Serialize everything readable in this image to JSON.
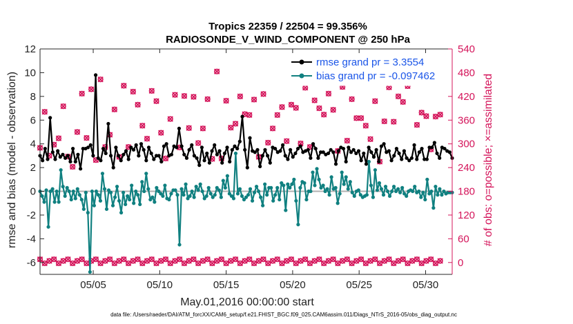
{
  "chart_data": {
    "type": "line",
    "title_line1": "Tropics 22359 / 22504 = 99.356%",
    "title_line2": "RADIOSONDE_V_WIND_COMPONENT @ 250 hPa",
    "xlabel": "May.01,2016 00:00:00 start",
    "ylabel_left": "rmse and bias (model - observation)",
    "ylabel_right": "# of obs: o=possible; ×=assimilated",
    "footer": "data file: /Users/raeder/DAI/ATM_forcXX/CAM6_setup/f.e21.FHIST_BGC.f09_025.CAM6assim.011/Diags_NTrS_2016-05/obs_diag_output.nc",
    "xlim": [
      1,
      32
    ],
    "ylim_left": [
      -7,
      12
    ],
    "ylim_right": [
      -30,
      540
    ],
    "x_ticks": [
      5,
      10,
      15,
      20,
      25,
      30
    ],
    "x_tick_labels": [
      "05/05",
      "05/10",
      "05/15",
      "05/20",
      "05/25",
      "05/30"
    ],
    "y_left_ticks": [
      -6,
      -4,
      -2,
      0,
      2,
      4,
      6,
      8,
      10,
      12
    ],
    "y_right_ticks": [
      0,
      60,
      120,
      180,
      240,
      300,
      360,
      420,
      480,
      540
    ],
    "colors": {
      "rmse": "#000000",
      "bias": "#108080",
      "obs": "#d4145a",
      "zero_line": "#b0b0b0",
      "right_axis": "#d4145a",
      "legend_text": "#1a55e8"
    },
    "series": [
      {
        "name": "rmse grand pr = 3.3554",
        "color": "#000000",
        "values": [
          3.0,
          2.6,
          3.6,
          2.7,
          6.2,
          3.3,
          2.7,
          3.4,
          2.9,
          3.1,
          2.8,
          3.0,
          2.5,
          3.6,
          2.5,
          3.1,
          1.9,
          3.6,
          3.6,
          3.7,
          3.9,
          3.0,
          9.8,
          2.8,
          2.6,
          3.6,
          3.2,
          5.7,
          3.0,
          2.0,
          3.7,
          3.0,
          2.6,
          3.1,
          3.4,
          2.7,
          3.7,
          3.5,
          3.9,
          3.0,
          4.0,
          3.5,
          2.6,
          3.7,
          3.2,
          2.7,
          3.0,
          3.0,
          2.5,
          3.8,
          4.0,
          3.0,
          3.1,
          3.8,
          3.7,
          5.3,
          3.8,
          3.1,
          2.8,
          3.5,
          3.9,
          3.0,
          2.8,
          2.2,
          3.7,
          2.6,
          3.2,
          2.4,
          3.4,
          3.9,
          3.1,
          3.4,
          2.4,
          3.2,
          3.7,
          2.5,
          3.5,
          3.8,
          3.6,
          4.2,
          6.3,
          3.5,
          2.0,
          4.5,
          3.4,
          3.3,
          3.5,
          2.1,
          3.0,
          3.5,
          3.0,
          2.4,
          3.7,
          3.6,
          3.3,
          3.4,
          3.9,
          3.0,
          2.7,
          3.5,
          2.9,
          3.2,
          3.6,
          3.8,
          3.3,
          3.4,
          3.5,
          2.8,
          4.0,
          3.6,
          2.8,
          3.3,
          3.3,
          3.1,
          3.2,
          3.5,
          3.3,
          2.3,
          3.4,
          3.7,
          3.6,
          2.5,
          3.7,
          3.3,
          3.5,
          3.2,
          3.4,
          2.6,
          3.2,
          2.3,
          3.7,
          3.3,
          2.9,
          3.5,
          2.5,
          3.8,
          4.0,
          3.3,
          3.4,
          2.6,
          3.0,
          3.6,
          3.2,
          2.7,
          3.4,
          2.8,
          2.6,
          2.8,
          3.9,
          2.7,
          3.3,
          3.6,
          2.7,
          2.7,
          3.7,
          3.7,
          4.1,
          3.2,
          2.8,
          3.7,
          3.6,
          3.4,
          3.3,
          2.8
        ]
      },
      {
        "name": "bias grand pr = -0.097462",
        "color": "#108080",
        "values": [
          0.0,
          -0.4,
          -0.9,
          0.1,
          -3.0,
          0.0,
          0.2,
          -0.9,
          0.0,
          -0.9,
          1.8,
          0.4,
          -0.4,
          0.3,
          0.0,
          -0.7,
          0.0,
          -0.6,
          0.2,
          -0.3,
          -0.7,
          -1.5,
          -0.1,
          -1.8,
          -6.8,
          0.0,
          -1.2,
          0.0,
          -0.3,
          -0.8,
          1.5,
          0.2,
          -1.5,
          0.1,
          -0.1,
          -1.2,
          -0.5,
          0.4,
          -0.8,
          -1.8,
          -0.1,
          -1.1,
          -0.4,
          -0.7,
          0.5,
          -1.0,
          0.0,
          -0.3,
          -1.1,
          0.8,
          0.0,
          1.5,
          0.2,
          -0.7,
          -0.5,
          -0.9,
          0.3,
          0.0,
          -0.2,
          -0.4,
          0.5,
          -0.6,
          -0.7,
          -0.2,
          0.1,
          0.1,
          -0.3,
          -4.5,
          0.2,
          -0.3,
          0.6,
          -0.6,
          -0.4,
          0.0,
          -0.5,
          0.4,
          0.1,
          0.6,
          0.0,
          -0.6,
          -0.4,
          0.3,
          -0.2,
          -0.5,
          -0.3,
          0.3,
          0.1,
          -0.5,
          0.9,
          0.3,
          1.3,
          -0.2,
          -0.4,
          -0.6,
          3.2,
          -0.2,
          0.2,
          -0.4,
          -0.7,
          -0.5,
          -0.3,
          0.2,
          -0.8,
          -0.1,
          0.4,
          0.0,
          -0.5,
          -1.2,
          0.6,
          -0.3,
          0.3,
          0.3,
          -0.8,
          -0.3,
          0.3,
          -0.7,
          0.7,
          0.5,
          -1.6,
          0.6,
          0.3,
          0.6,
          1.0,
          -0.8,
          -2.8,
          0.3,
          0.8,
          0.7,
          -0.7,
          0.0,
          0.0,
          1.6,
          0.5,
          1.9,
          1.0,
          0.3,
          0.5,
          0.0,
          0.2,
          -0.3,
          1.2,
          0.2,
          0.3,
          -1.0,
          -0.2,
          1.6,
          0.6,
          1.2,
          0.2,
          0.8,
          -0.1,
          -0.4,
          0.0,
          0.1,
          -0.3,
          -0.5,
          -0.4,
          -0.3,
          2.5,
          0.5,
          -0.5,
          1.8,
          0.1,
          0.7,
          0.2,
          -0.3,
          0.4,
          0.0,
          -0.4,
          0.0,
          0.4,
          0.0,
          0.2,
          -0.1,
          0.3,
          -0.2,
          -0.4,
          0.0,
          0.1,
          0.0,
          0.4,
          -0.1,
          0.0,
          -0.5,
          -0.1,
          -0.7,
          1.0,
          -0.2,
          0.0,
          -1.4,
          0.4,
          -0.3,
          0.2,
          -0.3,
          0.0,
          -0.2,
          -0.1,
          -0.1,
          -0.1
        ]
      }
    ],
    "obs_counts_high": [
      290,
      381,
      270,
      298,
      314,
      395,
      268,
      242,
      330,
      427,
      315,
      438,
      259,
      463,
      292,
      323,
      387,
      267,
      447,
      292,
      432,
      399,
      346,
      313,
      434,
      408,
      328,
      263,
      363,
      424,
      291,
      421,
      340,
      419,
      302,
      339,
      413,
      262,
      483,
      263,
      409,
      341,
      351,
      420,
      375,
      373,
      412,
      267,
      426,
      303,
      339,
      373,
      393,
      307,
      399,
      391,
      301,
      442,
      292,
      410,
      390,
      374,
      427,
      386,
      282,
      444,
      308,
      413,
      365,
      365,
      346,
      312,
      408,
      255,
      357,
      443,
      356,
      420,
      406,
      446,
      459,
      348,
      379,
      370,
      286,
      369,
      374
    ]
  },
  "legend": {
    "rmse_label": "rmse grand pr = 3.3554",
    "bias_label": "bias grand pr = -0.097462"
  }
}
